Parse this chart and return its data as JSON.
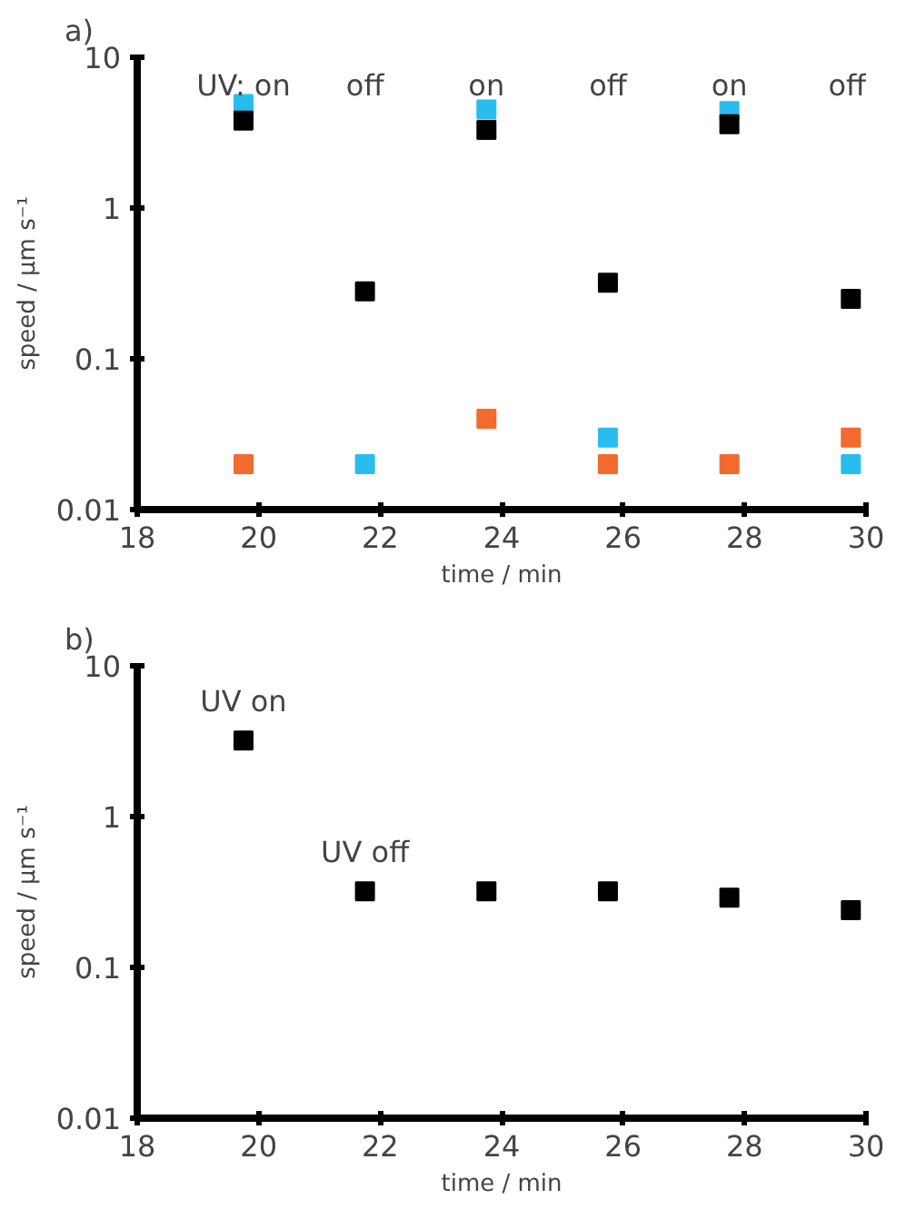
{
  "chart_data": [
    {
      "type": "scatter",
      "title": "a)",
      "xlabel": "time / min",
      "ylabel": "speed / μm s⁻¹",
      "x": [
        19.75,
        21.75,
        23.75,
        25.75,
        27.75,
        29.75
      ],
      "log": "y",
      "xlim": [
        18,
        30
      ],
      "ylim": [
        0.01,
        10
      ],
      "xticks": [
        18,
        20,
        22,
        24,
        26,
        28,
        30
      ],
      "yticks": [
        0.01,
        0.1,
        1,
        10
      ],
      "grid": false,
      "marker": "square",
      "series": [
        {
          "color": "#29bdef",
          "values": [
            4.9,
            0.02,
            4.5,
            0.03,
            4.4,
            0.02
          ]
        },
        {
          "color": "#000000",
          "values": [
            3.8,
            0.28,
            3.3,
            0.32,
            3.6,
            0.25
          ]
        },
        {
          "color": "#f26a2e",
          "values": [
            0.02,
            null,
            0.04,
            0.02,
            0.02,
            0.03
          ]
        }
      ],
      "annotations": [
        "UV: on",
        "off",
        "on",
        "off",
        "on",
        "off"
      ]
    },
    {
      "type": "scatter",
      "title": "b)",
      "xlabel": "time / min",
      "ylabel": "speed / μm s⁻¹",
      "x": [
        19.75,
        21.75,
        23.75,
        25.75,
        27.75,
        29.75
      ],
      "log": "y",
      "xlim": [
        18,
        30
      ],
      "ylim": [
        0.01,
        10
      ],
      "xticks": [
        18,
        20,
        22,
        24,
        26,
        28,
        30
      ],
      "yticks": [
        0.01,
        0.1,
        1,
        10
      ],
      "grid": false,
      "marker": "square",
      "series": [
        {
          "color": "#000000",
          "values": [
            3.2,
            0.32,
            0.32,
            0.32,
            0.29,
            0.24
          ]
        }
      ],
      "annotations": [
        {
          "text": "UV on",
          "x": 19.75,
          "y": 3.2
        },
        {
          "text": "UV off",
          "x": 21.75,
          "y": 0.32
        }
      ]
    }
  ]
}
